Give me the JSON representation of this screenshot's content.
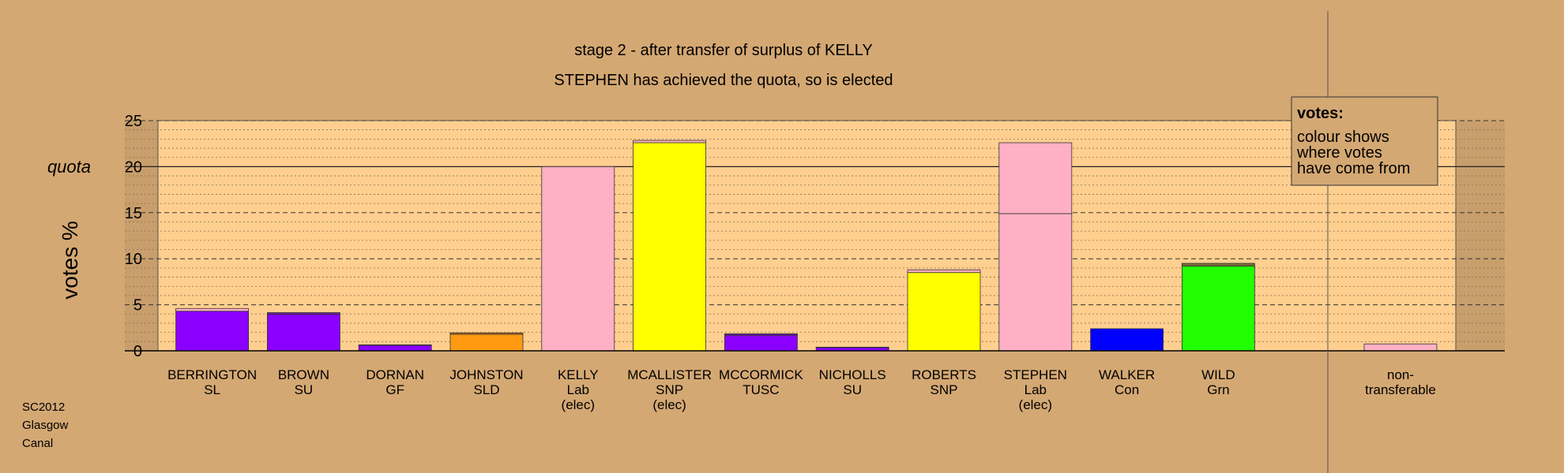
{
  "chart_data": {
    "type": "bar",
    "title": "stage 2 - after transfer of surplus of KELLY",
    "subtitle": "STEPHEN has achieved the quota, so is elected",
    "ylabel": "votes %",
    "ylim": [
      0,
      25
    ],
    "yticks": [
      0,
      5,
      10,
      15,
      20,
      25
    ],
    "quota": 20,
    "quota_label": "quota",
    "legend": {
      "heading": "votes:",
      "lines": [
        "colour shows",
        "where votes",
        "have come from"
      ],
      "placement": "top-right"
    },
    "candidates": [
      {
        "name": "BERRINGTON",
        "party": "SL",
        "note": "",
        "segments": [
          {
            "value": 4.3,
            "color": "#8b00ff"
          },
          {
            "value": 0.3,
            "color": "#ffb0c4"
          }
        ]
      },
      {
        "name": "BROWN",
        "party": "SU",
        "note": "",
        "segments": [
          {
            "value": 3.95,
            "color": "#8b00ff"
          },
          {
            "value": 0.2,
            "color": "#6a1aa8"
          }
        ]
      },
      {
        "name": "DORNAN",
        "party": "GF",
        "note": "",
        "segments": [
          {
            "value": 0.6,
            "color": "#8b00ff"
          },
          {
            "value": 0.05,
            "color": "#5a1a7a"
          }
        ]
      },
      {
        "name": "JOHNSTON",
        "party": "SLD",
        "note": "",
        "segments": [
          {
            "value": 1.8,
            "color": "#ff9a10"
          },
          {
            "value": 0.15,
            "color": "#c07020"
          }
        ]
      },
      {
        "name": "KELLY",
        "party": "Lab",
        "note": "(elec)",
        "segments": [
          {
            "value": 20.0,
            "color": "#ffb0c4"
          }
        ]
      },
      {
        "name": "MCALLISTER",
        "party": "SNP",
        "note": "(elec)",
        "segments": [
          {
            "value": 22.6,
            "color": "#ffff00"
          },
          {
            "value": 0.25,
            "color": "#ffb0c4"
          }
        ]
      },
      {
        "name": "MCCORMICK",
        "party": "TUSC",
        "note": "",
        "segments": [
          {
            "value": 1.65,
            "color": "#8b00ff"
          },
          {
            "value": 0.2,
            "color": "#6a1aa8"
          }
        ]
      },
      {
        "name": "NICHOLLS",
        "party": "SU",
        "note": "",
        "segments": [
          {
            "value": 0.35,
            "color": "#8b00ff"
          },
          {
            "value": 0.05,
            "color": "#5a1a7a"
          }
        ]
      },
      {
        "name": "ROBERTS",
        "party": "SNP",
        "note": "",
        "segments": [
          {
            "value": 8.5,
            "color": "#ffff00"
          },
          {
            "value": 0.3,
            "color": "#ffb0c4"
          }
        ]
      },
      {
        "name": "STEPHEN",
        "party": "Lab",
        "note": "(elec)",
        "segments": [
          {
            "value": 14.9,
            "color": "#ffb0c4"
          },
          {
            "value": 7.7,
            "color": "#ffb0c4"
          }
        ]
      },
      {
        "name": "WALKER",
        "party": "Con",
        "note": "",
        "segments": [
          {
            "value": 2.4,
            "color": "#0000ff"
          }
        ]
      },
      {
        "name": "WILD",
        "party": "Grn",
        "note": "",
        "segments": [
          {
            "value": 9.2,
            "color": "#22ff00"
          },
          {
            "value": 0.3,
            "color": "#7a6a3a"
          }
        ]
      }
    ],
    "nontransferable": {
      "label_line1": "non-",
      "label_line2": "transferable",
      "value": 0.75,
      "color": "#ffb0c4"
    },
    "colors": {
      "background": "#d4a873",
      "plot_area": "#ffcf8f",
      "gutter": "#c89e6c"
    }
  },
  "footer": {
    "line1": "SC2012",
    "line2": "Glasgow",
    "line3": "Canal"
  }
}
